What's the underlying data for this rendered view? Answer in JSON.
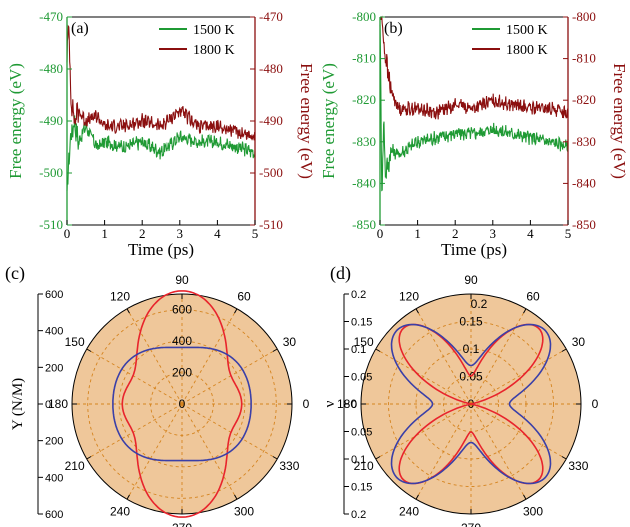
{
  "colors": {
    "green": "#1f9a34",
    "darkred": "#8b0f0f",
    "red": "#e8242c",
    "blue": "#3a3fa8",
    "polarfill": "#efc79a",
    "grid": "#d5841f",
    "axis": "#000000"
  },
  "chart_data": [
    {
      "panel": "(a)",
      "type": "line",
      "xlabel": "Time (ps)",
      "ylabel_left": "Free energy (eV)",
      "ylabel_right": "Free energy (eV)",
      "xlim": [
        0,
        5
      ],
      "ylim": [
        -510,
        -470
      ],
      "xticks": [
        "0",
        "1",
        "2",
        "3",
        "4",
        "5"
      ],
      "yticks": [
        "-470",
        "-480",
        "-490",
        "-500",
        "-510"
      ],
      "series": [
        {
          "name": "1500 K",
          "color": "#1f9a34",
          "x": [
            0,
            0.05,
            0.1,
            0.2,
            0.3,
            0.5,
            0.8,
            1.0,
            1.5,
            2.0,
            2.5,
            3.0,
            3.5,
            4.0,
            4.5,
            5.0
          ],
          "y": [
            -505,
            -497,
            -493,
            -490,
            -494,
            -491,
            -495,
            -494,
            -495,
            -494,
            -496,
            -493,
            -494,
            -494,
            -495,
            -496
          ]
        },
        {
          "name": "1800 K",
          "color": "#8b0f0f",
          "x": [
            0,
            0.05,
            0.1,
            0.2,
            0.3,
            0.5,
            0.8,
            1.0,
            1.5,
            2.0,
            2.5,
            3.0,
            3.5,
            4.0,
            4.5,
            5.0
          ],
          "y": [
            -478,
            -471,
            -485,
            -490,
            -488,
            -490,
            -489,
            -491,
            -491,
            -490,
            -491,
            -488,
            -491,
            -491,
            -492,
            -493
          ]
        }
      ]
    },
    {
      "panel": "(b)",
      "type": "line",
      "xlabel": "Time (ps)",
      "ylabel_left": "Free energy (eV)",
      "ylabel_right": "Free energy (eV)",
      "xlim": [
        0,
        5
      ],
      "ylim": [
        -850,
        -800
      ],
      "xticks": [
        "0",
        "1",
        "2",
        "3",
        "4",
        "5"
      ],
      "yticks": [
        "-800",
        "-810",
        "-820",
        "-830",
        "-840",
        "-850"
      ],
      "series": [
        {
          "name": "1500 K",
          "color": "#1f9a34",
          "x": [
            0,
            0.05,
            0.1,
            0.15,
            0.3,
            0.5,
            1.0,
            1.5,
            2.0,
            2.5,
            3.0,
            3.5,
            4.0,
            4.5,
            5.0
          ],
          "y": [
            -800,
            -842,
            -825,
            -838,
            -832,
            -833,
            -830,
            -829,
            -828,
            -828,
            -827,
            -828,
            -829,
            -830,
            -831
          ]
        },
        {
          "name": "1800 K",
          "color": "#8b0f0f",
          "x": [
            0,
            0.05,
            0.1,
            0.2,
            0.3,
            0.5,
            1.0,
            1.5,
            2.0,
            2.5,
            3.0,
            3.5,
            4.0,
            4.5,
            5.0
          ],
          "y": [
            -800,
            -800,
            -806,
            -813,
            -818,
            -822,
            -822,
            -823,
            -821,
            -822,
            -820,
            -821,
            -822,
            -822,
            -823
          ]
        }
      ]
    },
    {
      "panel": "(c)",
      "type": "polar",
      "radial_label": "Y (N/M)",
      "rmax": 700,
      "radial_ticks": [
        200,
        400,
        600
      ],
      "radial_tick_labels": [
        "0",
        "200",
        "400",
        "600"
      ],
      "axis_ticks": [
        "600",
        "400",
        "200",
        "0",
        "200",
        "400",
        "600"
      ],
      "angle_labels": [
        "0",
        "30",
        "60",
        "90",
        "120",
        "150",
        "180",
        "210",
        "240",
        "270",
        "300",
        "330"
      ],
      "series": [
        {
          "name": "red",
          "color": "#e8242c",
          "r0": 480,
          "a2": -170,
          "a4": 70
        },
        {
          "name": "blue",
          "color": "#3a3fa8",
          "r0": 415,
          "a2": 40,
          "a4": -15
        }
      ]
    },
    {
      "panel": "(d)",
      "type": "polar",
      "radial_label": "ν",
      "rmax": 0.2,
      "radial_ticks": [
        0.05,
        0.1,
        0.15,
        0.2
      ],
      "radial_tick_labels": [
        "0",
        "0.05",
        "0.1",
        "0.15",
        "0.2"
      ],
      "axis_ticks": [
        "0.2",
        "0.15",
        "0.1",
        "0.05",
        "0",
        "0.05",
        "0.1",
        "0.15",
        "0.2"
      ],
      "angle_labels": [
        "0",
        "30",
        "60",
        "90",
        "120",
        "150",
        "180",
        "210",
        "240",
        "270",
        "300",
        "330"
      ],
      "series": [
        {
          "name": "red",
          "color": "#e8242c",
          "r0": 0.095,
          "a2": -0.043,
          "a4": -0.087
        },
        {
          "name": "blue",
          "color": "#3a3fa8",
          "r0": 0.13,
          "a2": 0.0,
          "a4": -0.06
        }
      ]
    }
  ]
}
